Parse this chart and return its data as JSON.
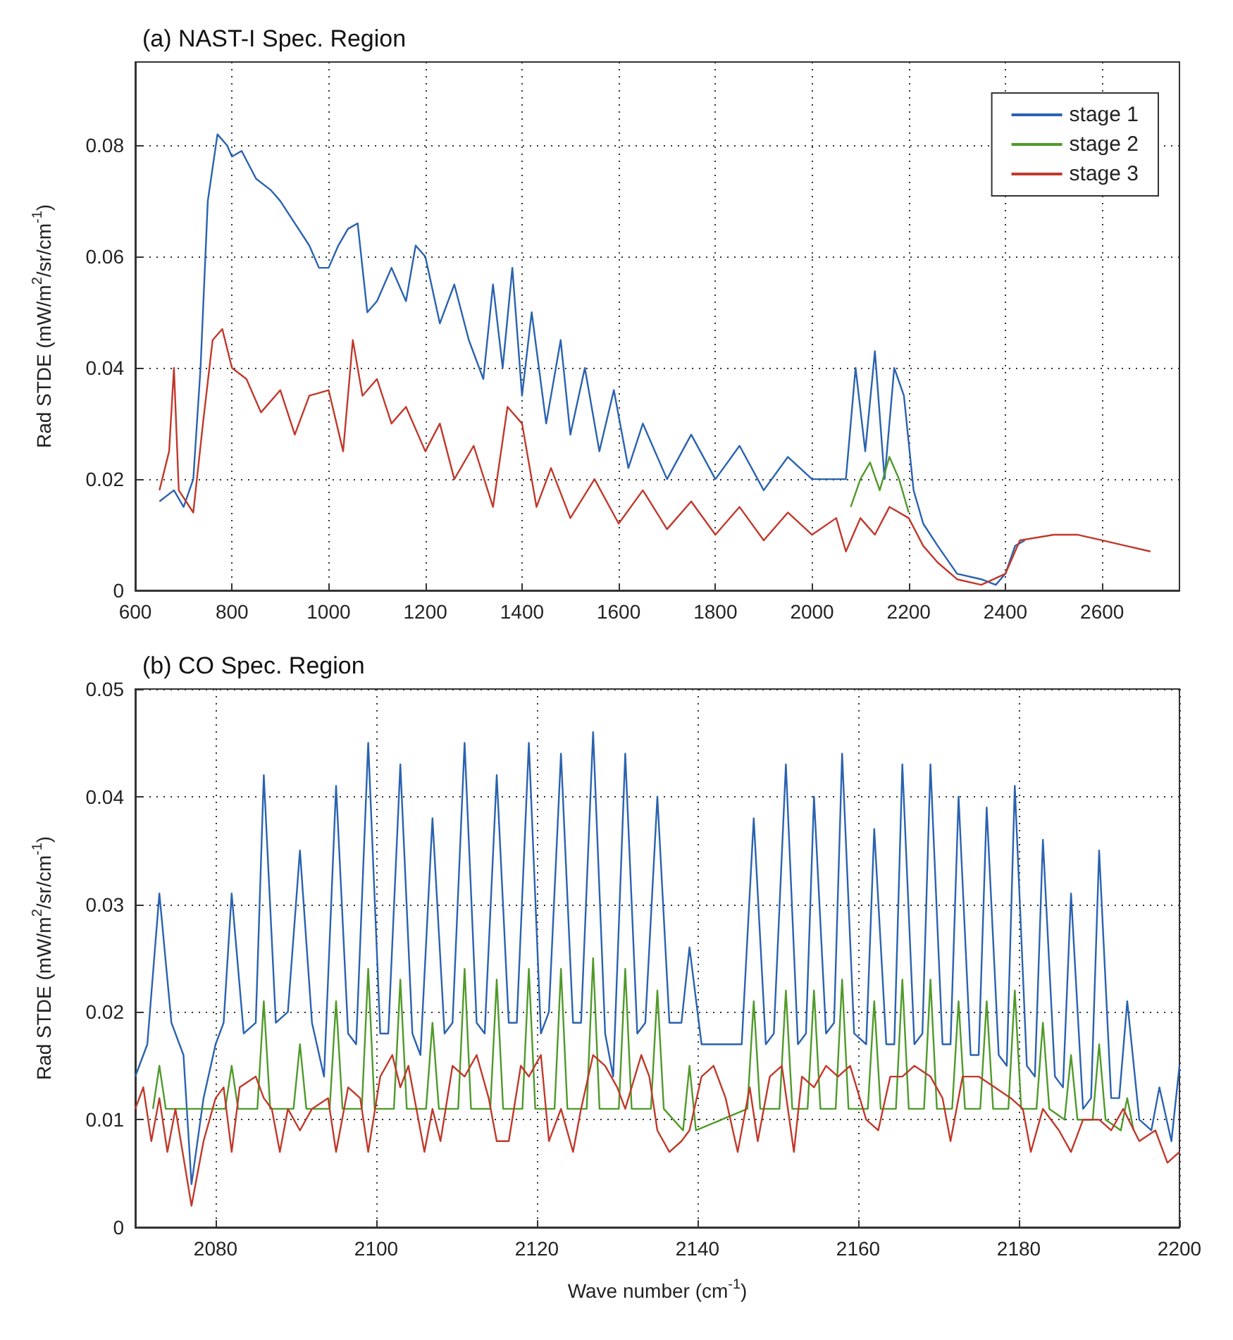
{
  "chart_data": [
    {
      "type": "line",
      "title": "(a) NAST-I Spec. Region",
      "ylabel": "Rad STDE (mW/m$^{2}$/sr/cm$^{-1}$)",
      "xlim": [
        600,
        2760
      ],
      "xticks": [
        600,
        800,
        1000,
        1200,
        1400,
        1600,
        1800,
        2000,
        2200,
        2400,
        2600
      ],
      "ylim": [
        0,
        0.095
      ],
      "yticks": [
        0,
        0.02,
        0.04,
        0.06,
        0.08
      ],
      "grid": true,
      "legend": "top right",
      "marker": "none",
      "line_style": "solid",
      "series": [
        {
          "name": "stage 1",
          "color": "#2a62b0",
          "x": [
            650,
            680,
            700,
            720,
            735,
            750,
            770,
            790,
            800,
            820,
            850,
            880,
            900,
            930,
            960,
            980,
            1000,
            1020,
            1040,
            1060,
            1080,
            1100,
            1130,
            1160,
            1180,
            1200,
            1230,
            1260,
            1290,
            1320,
            1340,
            1360,
            1380,
            1400,
            1420,
            1450,
            1480,
            1500,
            1530,
            1560,
            1590,
            1620,
            1650,
            1700,
            1750,
            1800,
            1850,
            1900,
            1950,
            2000,
            2050,
            2070,
            2090,
            2110,
            2130,
            2150,
            2170,
            2190,
            2210,
            2230,
            2260,
            2300,
            2350,
            2380,
            2400,
            2420,
            2440
          ],
          "values": [
            0.016,
            0.018,
            0.015,
            0.02,
            0.04,
            0.07,
            0.082,
            0.08,
            0.078,
            0.079,
            0.074,
            0.072,
            0.07,
            0.066,
            0.062,
            0.058,
            0.058,
            0.062,
            0.065,
            0.066,
            0.05,
            0.052,
            0.058,
            0.052,
            0.062,
            0.06,
            0.048,
            0.055,
            0.045,
            0.038,
            0.055,
            0.04,
            0.058,
            0.035,
            0.05,
            0.03,
            0.045,
            0.028,
            0.04,
            0.025,
            0.036,
            0.022,
            0.03,
            0.02,
            0.028,
            0.02,
            0.026,
            0.018,
            0.024,
            0.02,
            0.02,
            0.02,
            0.04,
            0.025,
            0.043,
            0.02,
            0.04,
            0.035,
            0.018,
            0.012,
            0.008,
            0.003,
            0.002,
            0.001,
            0.003,
            0.008,
            0.009
          ]
        },
        {
          "name": "stage 2",
          "color": "#4f9a2a",
          "x": [
            2080,
            2100,
            2120,
            2140,
            2160,
            2180,
            2200
          ],
          "values": [
            0.015,
            0.02,
            0.023,
            0.018,
            0.024,
            0.02,
            0.014
          ]
        },
        {
          "name": "stage 3",
          "color": "#c0392b",
          "x": [
            650,
            670,
            680,
            690,
            720,
            740,
            760,
            780,
            800,
            830,
            860,
            900,
            930,
            960,
            1000,
            1030,
            1050,
            1070,
            1100,
            1130,
            1160,
            1200,
            1230,
            1260,
            1300,
            1340,
            1370,
            1400,
            1430,
            1460,
            1500,
            1550,
            1600,
            1650,
            1700,
            1750,
            1800,
            1850,
            1900,
            1950,
            2000,
            2050,
            2070,
            2100,
            2130,
            2160,
            2200,
            2230,
            2260,
            2300,
            2350,
            2400,
            2430,
            2500,
            2550,
            2600,
            2650,
            2700
          ],
          "values": [
            0.018,
            0.025,
            0.04,
            0.018,
            0.014,
            0.03,
            0.045,
            0.047,
            0.04,
            0.038,
            0.032,
            0.036,
            0.028,
            0.035,
            0.036,
            0.025,
            0.045,
            0.035,
            0.038,
            0.03,
            0.033,
            0.025,
            0.03,
            0.02,
            0.026,
            0.015,
            0.033,
            0.03,
            0.015,
            0.022,
            0.013,
            0.02,
            0.012,
            0.018,
            0.011,
            0.016,
            0.01,
            0.015,
            0.009,
            0.014,
            0.01,
            0.013,
            0.007,
            0.013,
            0.01,
            0.015,
            0.013,
            0.008,
            0.005,
            0.002,
            0.001,
            0.003,
            0.009,
            0.01,
            0.01,
            0.009,
            0.008,
            0.007
          ]
        }
      ]
    },
    {
      "type": "line",
      "title": "(b) CO Spec. Region",
      "xlabel": "Wave number (cm$^{-1}$)",
      "ylabel": "Rad STDE (mW/m$^{2}$/sr/cm$^{-1}$)",
      "xlim": [
        2070,
        2200
      ],
      "xticks": [
        2080,
        2100,
        2120,
        2140,
        2160,
        2180,
        2200
      ],
      "ylim": [
        0,
        0.05
      ],
      "yticks": [
        0,
        0.01,
        0.02,
        0.03,
        0.04,
        0.05
      ],
      "grid": true,
      "marker": "none",
      "line_style": "solid",
      "series": [
        {
          "color": "#2a62b0",
          "x": [
            2070,
            2071.5,
            2073,
            2074.5,
            2076,
            2077,
            2078.5,
            2080,
            2081,
            2082,
            2083.5,
            2085,
            2086,
            2087.5,
            2089,
            2090.5,
            2092,
            2093.5,
            2095,
            2096.5,
            2097.5,
            2099,
            2100.5,
            2101.5,
            2103,
            2104.5,
            2105.5,
            2107,
            2108.5,
            2109.5,
            2111,
            2112.5,
            2113.5,
            2115,
            2116.5,
            2117.5,
            2119,
            2120.5,
            2121.5,
            2123,
            2124.5,
            2125.5,
            2127,
            2128.5,
            2129.5,
            2131,
            2132.5,
            2133.5,
            2135,
            2136.5,
            2138,
            2139,
            2140.5,
            2143,
            2145.5,
            2147,
            2148.5,
            2149.5,
            2151,
            2152.5,
            2153.5,
            2154.5,
            2156,
            2157,
            2158,
            2159.5,
            2161,
            2162,
            2163.5,
            2164.5,
            2165.5,
            2167,
            2168,
            2169,
            2170.5,
            2171.5,
            2172.5,
            2174,
            2175,
            2176,
            2177.5,
            2178.5,
            2179.5,
            2181,
            2182,
            2183,
            2184.5,
            2185.5,
            2186.5,
            2188,
            2189,
            2190,
            2191.5,
            2192.5,
            2193.5,
            2195,
            2196.5,
            2197.5,
            2199,
            2200
          ],
          "values": [
            0.014,
            0.017,
            0.031,
            0.019,
            0.016,
            0.004,
            0.012,
            0.017,
            0.019,
            0.031,
            0.018,
            0.019,
            0.042,
            0.019,
            0.02,
            0.035,
            0.019,
            0.014,
            0.041,
            0.018,
            0.017,
            0.045,
            0.018,
            0.018,
            0.043,
            0.018,
            0.016,
            0.038,
            0.018,
            0.019,
            0.045,
            0.019,
            0.018,
            0.042,
            0.019,
            0.019,
            0.045,
            0.018,
            0.02,
            0.044,
            0.019,
            0.019,
            0.046,
            0.018,
            0.014,
            0.044,
            0.018,
            0.019,
            0.04,
            0.019,
            0.019,
            0.026,
            0.017,
            0.017,
            0.017,
            0.038,
            0.017,
            0.018,
            0.043,
            0.017,
            0.018,
            0.04,
            0.018,
            0.019,
            0.044,
            0.018,
            0.017,
            0.037,
            0.017,
            0.017,
            0.043,
            0.017,
            0.018,
            0.043,
            0.017,
            0.017,
            0.04,
            0.016,
            0.016,
            0.039,
            0.016,
            0.015,
            0.041,
            0.015,
            0.014,
            0.036,
            0.014,
            0.013,
            0.031,
            0.011,
            0.012,
            0.035,
            0.012,
            0.012,
            0.021,
            0.01,
            0.009,
            0.013,
            0.008,
            0.015
          ]
        },
        {
          "color": "#4f9a2a",
          "x": [
            2072.2,
            2073,
            2073.8,
            2081.2,
            2082,
            2082.8,
            2085.2,
            2086,
            2086.8,
            2089.7,
            2090.5,
            2091.3,
            2094.2,
            2095,
            2095.8,
            2098.2,
            2099,
            2099.8,
            2102.2,
            2103,
            2103.8,
            2106.2,
            2107,
            2107.8,
            2110.2,
            2111,
            2111.8,
            2114.2,
            2115,
            2115.8,
            2118.2,
            2119,
            2119.8,
            2122.2,
            2123,
            2123.8,
            2126.2,
            2127,
            2127.8,
            2130.2,
            2131,
            2131.8,
            2134.2,
            2135,
            2135.8,
            2138.2,
            2139,
            2139.8,
            2146.2,
            2147,
            2147.8,
            2150.2,
            2151,
            2151.8,
            2153.7,
            2154.5,
            2155.3,
            2157.2,
            2158,
            2158.8,
            2161.2,
            2162,
            2162.8,
            2164.7,
            2165.5,
            2166.3,
            2168.2,
            2169,
            2169.8,
            2171.7,
            2172.5,
            2173.3,
            2175.2,
            2176,
            2176.8,
            2178.7,
            2179.5,
            2180.3,
            2182.2,
            2183,
            2183.8,
            2185.7,
            2186.5,
            2187.3,
            2189.2,
            2190,
            2190.8,
            2192.7,
            2193.5,
            2194.3
          ],
          "values": [
            0.011,
            0.015,
            0.011,
            0.011,
            0.015,
            0.011,
            0.011,
            0.021,
            0.011,
            0.011,
            0.017,
            0.011,
            0.011,
            0.021,
            0.011,
            0.011,
            0.024,
            0.011,
            0.011,
            0.023,
            0.011,
            0.011,
            0.019,
            0.011,
            0.011,
            0.024,
            0.011,
            0.011,
            0.023,
            0.011,
            0.011,
            0.024,
            0.011,
            0.011,
            0.024,
            0.011,
            0.011,
            0.025,
            0.011,
            0.011,
            0.024,
            0.011,
            0.011,
            0.022,
            0.011,
            0.009,
            0.015,
            0.009,
            0.011,
            0.021,
            0.011,
            0.011,
            0.022,
            0.011,
            0.011,
            0.022,
            0.011,
            0.011,
            0.023,
            0.011,
            0.011,
            0.021,
            0.011,
            0.011,
            0.023,
            0.011,
            0.011,
            0.023,
            0.011,
            0.011,
            0.021,
            0.011,
            0.011,
            0.021,
            0.011,
            0.011,
            0.022,
            0.011,
            0.011,
            0.019,
            0.011,
            0.01,
            0.016,
            0.01,
            0.01,
            0.017,
            0.01,
            0.009,
            0.012,
            0.009
          ]
        },
        {
          "color": "#c0392b",
          "x": [
            2070,
            2071,
            2072,
            2073,
            2074,
            2075,
            2077,
            2078.5,
            2080,
            2081,
            2082,
            2083,
            2085,
            2086,
            2087,
            2088,
            2089,
            2090.5,
            2092,
            2094,
            2095,
            2096.5,
            2098,
            2099,
            2100.5,
            2102,
            2103,
            2104,
            2106,
            2107,
            2108,
            2109.5,
            2111,
            2112.5,
            2114,
            2115,
            2116.5,
            2118,
            2119,
            2120.5,
            2121.5,
            2123,
            2124.5,
            2125.5,
            2127,
            2128.5,
            2130,
            2131,
            2133,
            2134,
            2135,
            2136.5,
            2138,
            2139,
            2140.5,
            2142,
            2143.5,
            2145,
            2146.5,
            2147.5,
            2149,
            2150.5,
            2152,
            2153,
            2154.5,
            2156,
            2157.5,
            2159,
            2161,
            2162.5,
            2164,
            2165.5,
            2167,
            2169,
            2170.5,
            2171.5,
            2173,
            2175,
            2177,
            2179,
            2180.5,
            2181.5,
            2183,
            2185,
            2186.5,
            2188,
            2190,
            2191.5,
            2193,
            2195,
            2197,
            2198.5,
            2200
          ],
          "values": [
            0.011,
            0.013,
            0.008,
            0.012,
            0.007,
            0.011,
            0.002,
            0.008,
            0.012,
            0.013,
            0.007,
            0.013,
            0.014,
            0.012,
            0.011,
            0.007,
            0.011,
            0.009,
            0.011,
            0.012,
            0.007,
            0.013,
            0.012,
            0.007,
            0.014,
            0.016,
            0.013,
            0.015,
            0.007,
            0.011,
            0.008,
            0.015,
            0.014,
            0.016,
            0.012,
            0.008,
            0.008,
            0.015,
            0.014,
            0.016,
            0.008,
            0.011,
            0.007,
            0.011,
            0.016,
            0.015,
            0.013,
            0.011,
            0.016,
            0.014,
            0.009,
            0.007,
            0.008,
            0.009,
            0.014,
            0.015,
            0.012,
            0.007,
            0.013,
            0.008,
            0.014,
            0.015,
            0.007,
            0.014,
            0.013,
            0.015,
            0.014,
            0.015,
            0.01,
            0.009,
            0.014,
            0.014,
            0.015,
            0.014,
            0.012,
            0.008,
            0.014,
            0.014,
            0.013,
            0.012,
            0.011,
            0.007,
            0.011,
            0.009,
            0.007,
            0.01,
            0.01,
            0.009,
            0.011,
            0.008,
            0.009,
            0.006,
            0.007
          ]
        }
      ]
    }
  ]
}
